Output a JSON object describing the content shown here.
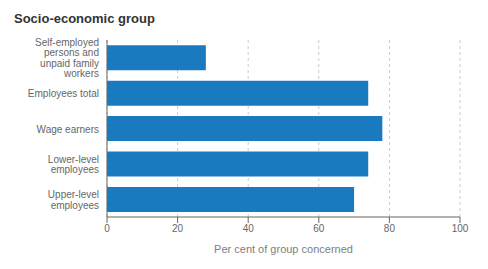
{
  "chart_data": {
    "type": "bar",
    "orientation": "horizontal",
    "title": "Socio-economic group",
    "xlabel": "Per cent of group concerned",
    "categories": [
      "Upper-level\nemployees",
      "Lower-level\nemployees",
      "Wage earners",
      "Employees total",
      "Self-employed\npersons and\nunpaid family\nworkers"
    ],
    "values": [
      70,
      74,
      78,
      74,
      28
    ],
    "color": "#1a7abf",
    "xlim": [
      0,
      100
    ],
    "xticks": [
      0,
      20,
      40,
      60,
      80,
      100
    ],
    "grid": true
  }
}
